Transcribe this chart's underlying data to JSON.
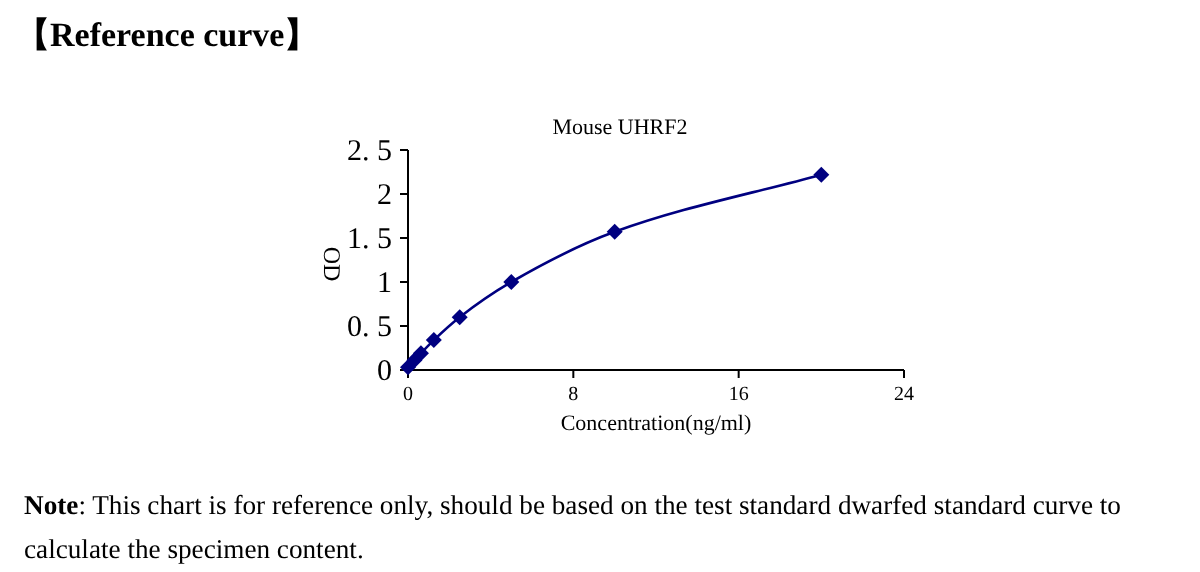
{
  "chart_data": {
    "type": "line",
    "title": "【Reference curve】",
    "subtitle": "Mouse UHRF2",
    "xlabel": "Concentration(ng/ml)",
    "ylabel": "OD",
    "x": [
      0,
      0.3125,
      0.625,
      1.25,
      2.5,
      5,
      10,
      20
    ],
    "series": [
      {
        "color": "#000080",
        "values": [
          0.03,
          0.11,
          0.19,
          0.34,
          0.6,
          1.0,
          1.57,
          2.22
        ]
      }
    ],
    "xlim": [
      0,
      24
    ],
    "xticks": [
      0,
      8,
      16,
      24
    ],
    "ylim": [
      0,
      2.5
    ],
    "yticks": [
      0,
      {
        "value": 0.5,
        "label": "0. 5"
      },
      1,
      {
        "value": 1.5,
        "label": "1. 5"
      },
      2,
      {
        "value": 2.5,
        "label": "2. 5"
      }
    ],
    "marker": "diamond",
    "line_style": "solid",
    "grid": false,
    "annotations": [
      "**Note**: This chart is for reference only, should be based on the test standard dwarfed standard curve to calculate the specimen content."
    ]
  }
}
